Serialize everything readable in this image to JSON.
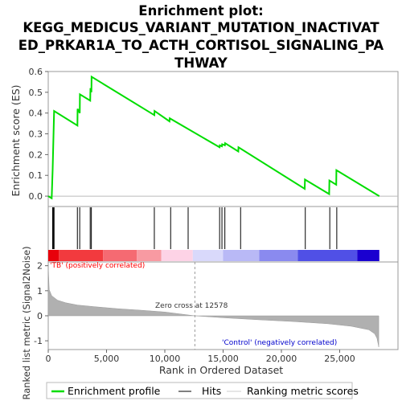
{
  "chart_data": {
    "type": "line",
    "title_lines": [
      "Enrichment plot:",
      "KEGG_MEDICUS_VARIANT_MUTATION_INACTIVAT",
      "ED_PRKAR1A_TO_ACTH_CORTISOL_SIGNALING_PA",
      "THWAY"
    ],
    "top_panel": {
      "ylabel": "Enrichment score (ES)",
      "ylim": [
        -0.05,
        0.6
      ],
      "yticks": [
        "0.0",
        "0.1",
        "0.2",
        "0.3",
        "0.4",
        "0.5",
        "0.6"
      ],
      "ytick_values": [
        0.0,
        0.1,
        0.2,
        0.3,
        0.4,
        0.5,
        0.6
      ],
      "series_color": "#00dd00",
      "es_points": [
        [
          0,
          0.0
        ],
        [
          300,
          -0.01
        ],
        [
          380,
          0.13
        ],
        [
          440,
          0.27
        ],
        [
          500,
          0.41
        ],
        [
          2500,
          0.34
        ],
        [
          2520,
          0.42
        ],
        [
          2700,
          0.4
        ],
        [
          2720,
          0.49
        ],
        [
          3600,
          0.46
        ],
        [
          3620,
          0.52
        ],
        [
          3700,
          0.5
        ],
        [
          3720,
          0.575
        ],
        [
          9100,
          0.39
        ],
        [
          9120,
          0.41
        ],
        [
          10400,
          0.36
        ],
        [
          10420,
          0.375
        ],
        [
          14700,
          0.235
        ],
        [
          14720,
          0.245
        ],
        [
          14900,
          0.24
        ],
        [
          14920,
          0.25
        ],
        [
          15150,
          0.245
        ],
        [
          15170,
          0.255
        ],
        [
          16300,
          0.215
        ],
        [
          16320,
          0.235
        ],
        [
          22000,
          0.035
        ],
        [
          22020,
          0.08
        ],
        [
          24100,
          0.01
        ],
        [
          24120,
          0.075
        ],
        [
          24700,
          0.055
        ],
        [
          24720,
          0.125
        ],
        [
          28400,
          0.0
        ]
      ]
    },
    "hits": [
      380,
      440,
      500,
      2500,
      2700,
      3600,
      3700,
      9100,
      10500,
      12000,
      14700,
      14900,
      15150,
      16500,
      22050,
      24150,
      24750
    ],
    "ranked_panel": {
      "ylabel": "Ranked list metric (Signal2Noise)",
      "ylim": [
        -1.35,
        2.15
      ],
      "yticks": [
        "-1",
        "0",
        "1",
        "2"
      ],
      "ytick_values": [
        -1,
        0,
        1,
        2
      ],
      "metric_points": [
        [
          0,
          2.0
        ],
        [
          80,
          1.05
        ],
        [
          300,
          0.8
        ],
        [
          800,
          0.62
        ],
        [
          1500,
          0.52
        ],
        [
          2500,
          0.43
        ],
        [
          4000,
          0.36
        ],
        [
          6000,
          0.28
        ],
        [
          8000,
          0.22
        ],
        [
          10000,
          0.15
        ],
        [
          12578,
          0.0
        ],
        [
          15000,
          -0.08
        ],
        [
          18000,
          -0.16
        ],
        [
          21000,
          -0.23
        ],
        [
          24000,
          -0.32
        ],
        [
          26000,
          -0.42
        ],
        [
          27500,
          -0.56
        ],
        [
          28000,
          -0.72
        ],
        [
          28200,
          -0.9
        ],
        [
          28350,
          -1.25
        ]
      ],
      "zero_cross_label": "Zero cross at 12578",
      "zero_cross_x": 12578,
      "pos_label": "'TB' (positively correlated)",
      "neg_label": "'Control' (negatively correlated)",
      "pos_color": "#ff0000",
      "neg_color": "#0000ff"
    },
    "xlabel": "Rank in Ordered Dataset",
    "xlim": [
      0,
      30000
    ],
    "xticks": [
      "0",
      "5,000",
      "10,000",
      "15,000",
      "20,000",
      "25,000"
    ],
    "xtick_values": [
      0,
      5000,
      10000,
      15000,
      20000,
      25000
    ],
    "heat_bar": [
      {
        "from": 0,
        "to": 900,
        "color": "#e8000b"
      },
      {
        "from": 900,
        "to": 4700,
        "color": "#f23a3e"
      },
      {
        "from": 4700,
        "to": 7600,
        "color": "#f56a72"
      },
      {
        "from": 7600,
        "to": 9700,
        "color": "#f89aa2"
      },
      {
        "from": 9700,
        "to": 12400,
        "color": "#fdd3e6"
      },
      {
        "from": 12400,
        "to": 15000,
        "color": "#d9d9fb"
      },
      {
        "from": 15000,
        "to": 18100,
        "color": "#b9b9f6"
      },
      {
        "from": 18100,
        "to": 21400,
        "color": "#8a8aef"
      },
      {
        "from": 21400,
        "to": 26500,
        "color": "#5050e6"
      },
      {
        "from": 26500,
        "to": 28400,
        "color": "#1a00d0"
      }
    ],
    "legend": [
      {
        "label": "Enrichment profile",
        "color": "#00dd00",
        "kind": "line"
      },
      {
        "label": "Hits",
        "color": "#000000",
        "kind": "line"
      },
      {
        "label": "Ranking metric scores",
        "color": "#cccccc",
        "kind": "line"
      }
    ]
  }
}
